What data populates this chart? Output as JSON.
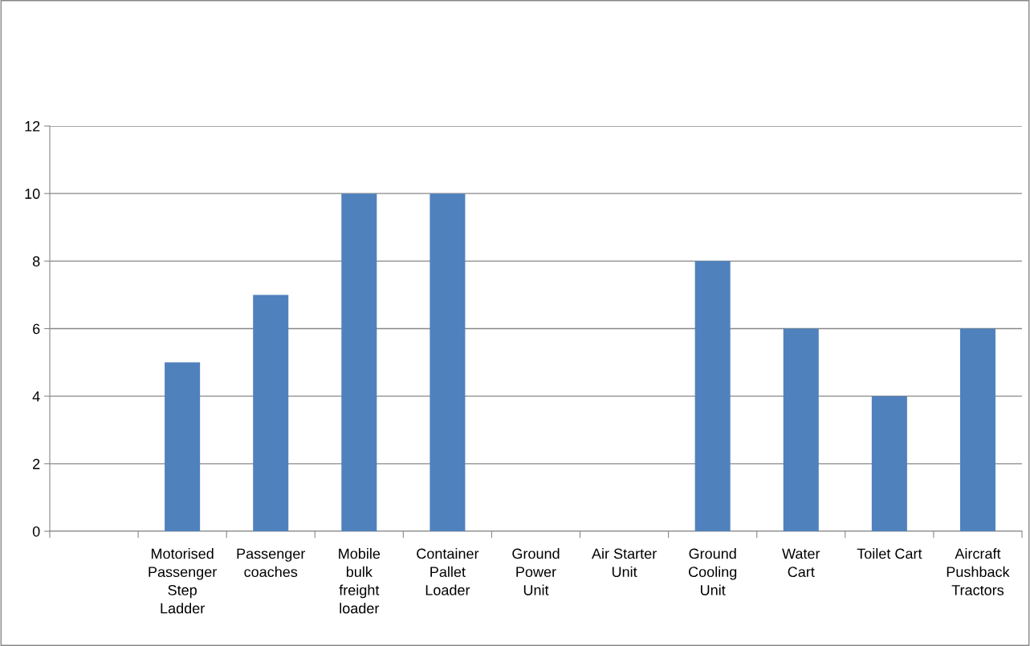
{
  "chart_data": {
    "type": "bar",
    "categories": [
      null,
      "Motorised\nPassenger\nStep\nLadder",
      "Passenger\ncoaches",
      "Mobile\nbulk\nfreight\nloader",
      "Container\nPallet\nLoader",
      "Ground\nPower\nUnit",
      "Air Starter\nUnit",
      "Ground\nCooling\nUnit",
      "Water\nCart",
      "Toilet Cart",
      "Aircraft\nPushback\nTractors"
    ],
    "values": [
      0,
      5,
      7,
      10,
      10,
      0,
      0,
      8,
      6,
      4,
      6
    ],
    "color": "#4f81bd",
    "ylim": [
      0,
      12
    ],
    "yticks": [
      0,
      2,
      4,
      6,
      8,
      10,
      12
    ],
    "grid": "y"
  }
}
